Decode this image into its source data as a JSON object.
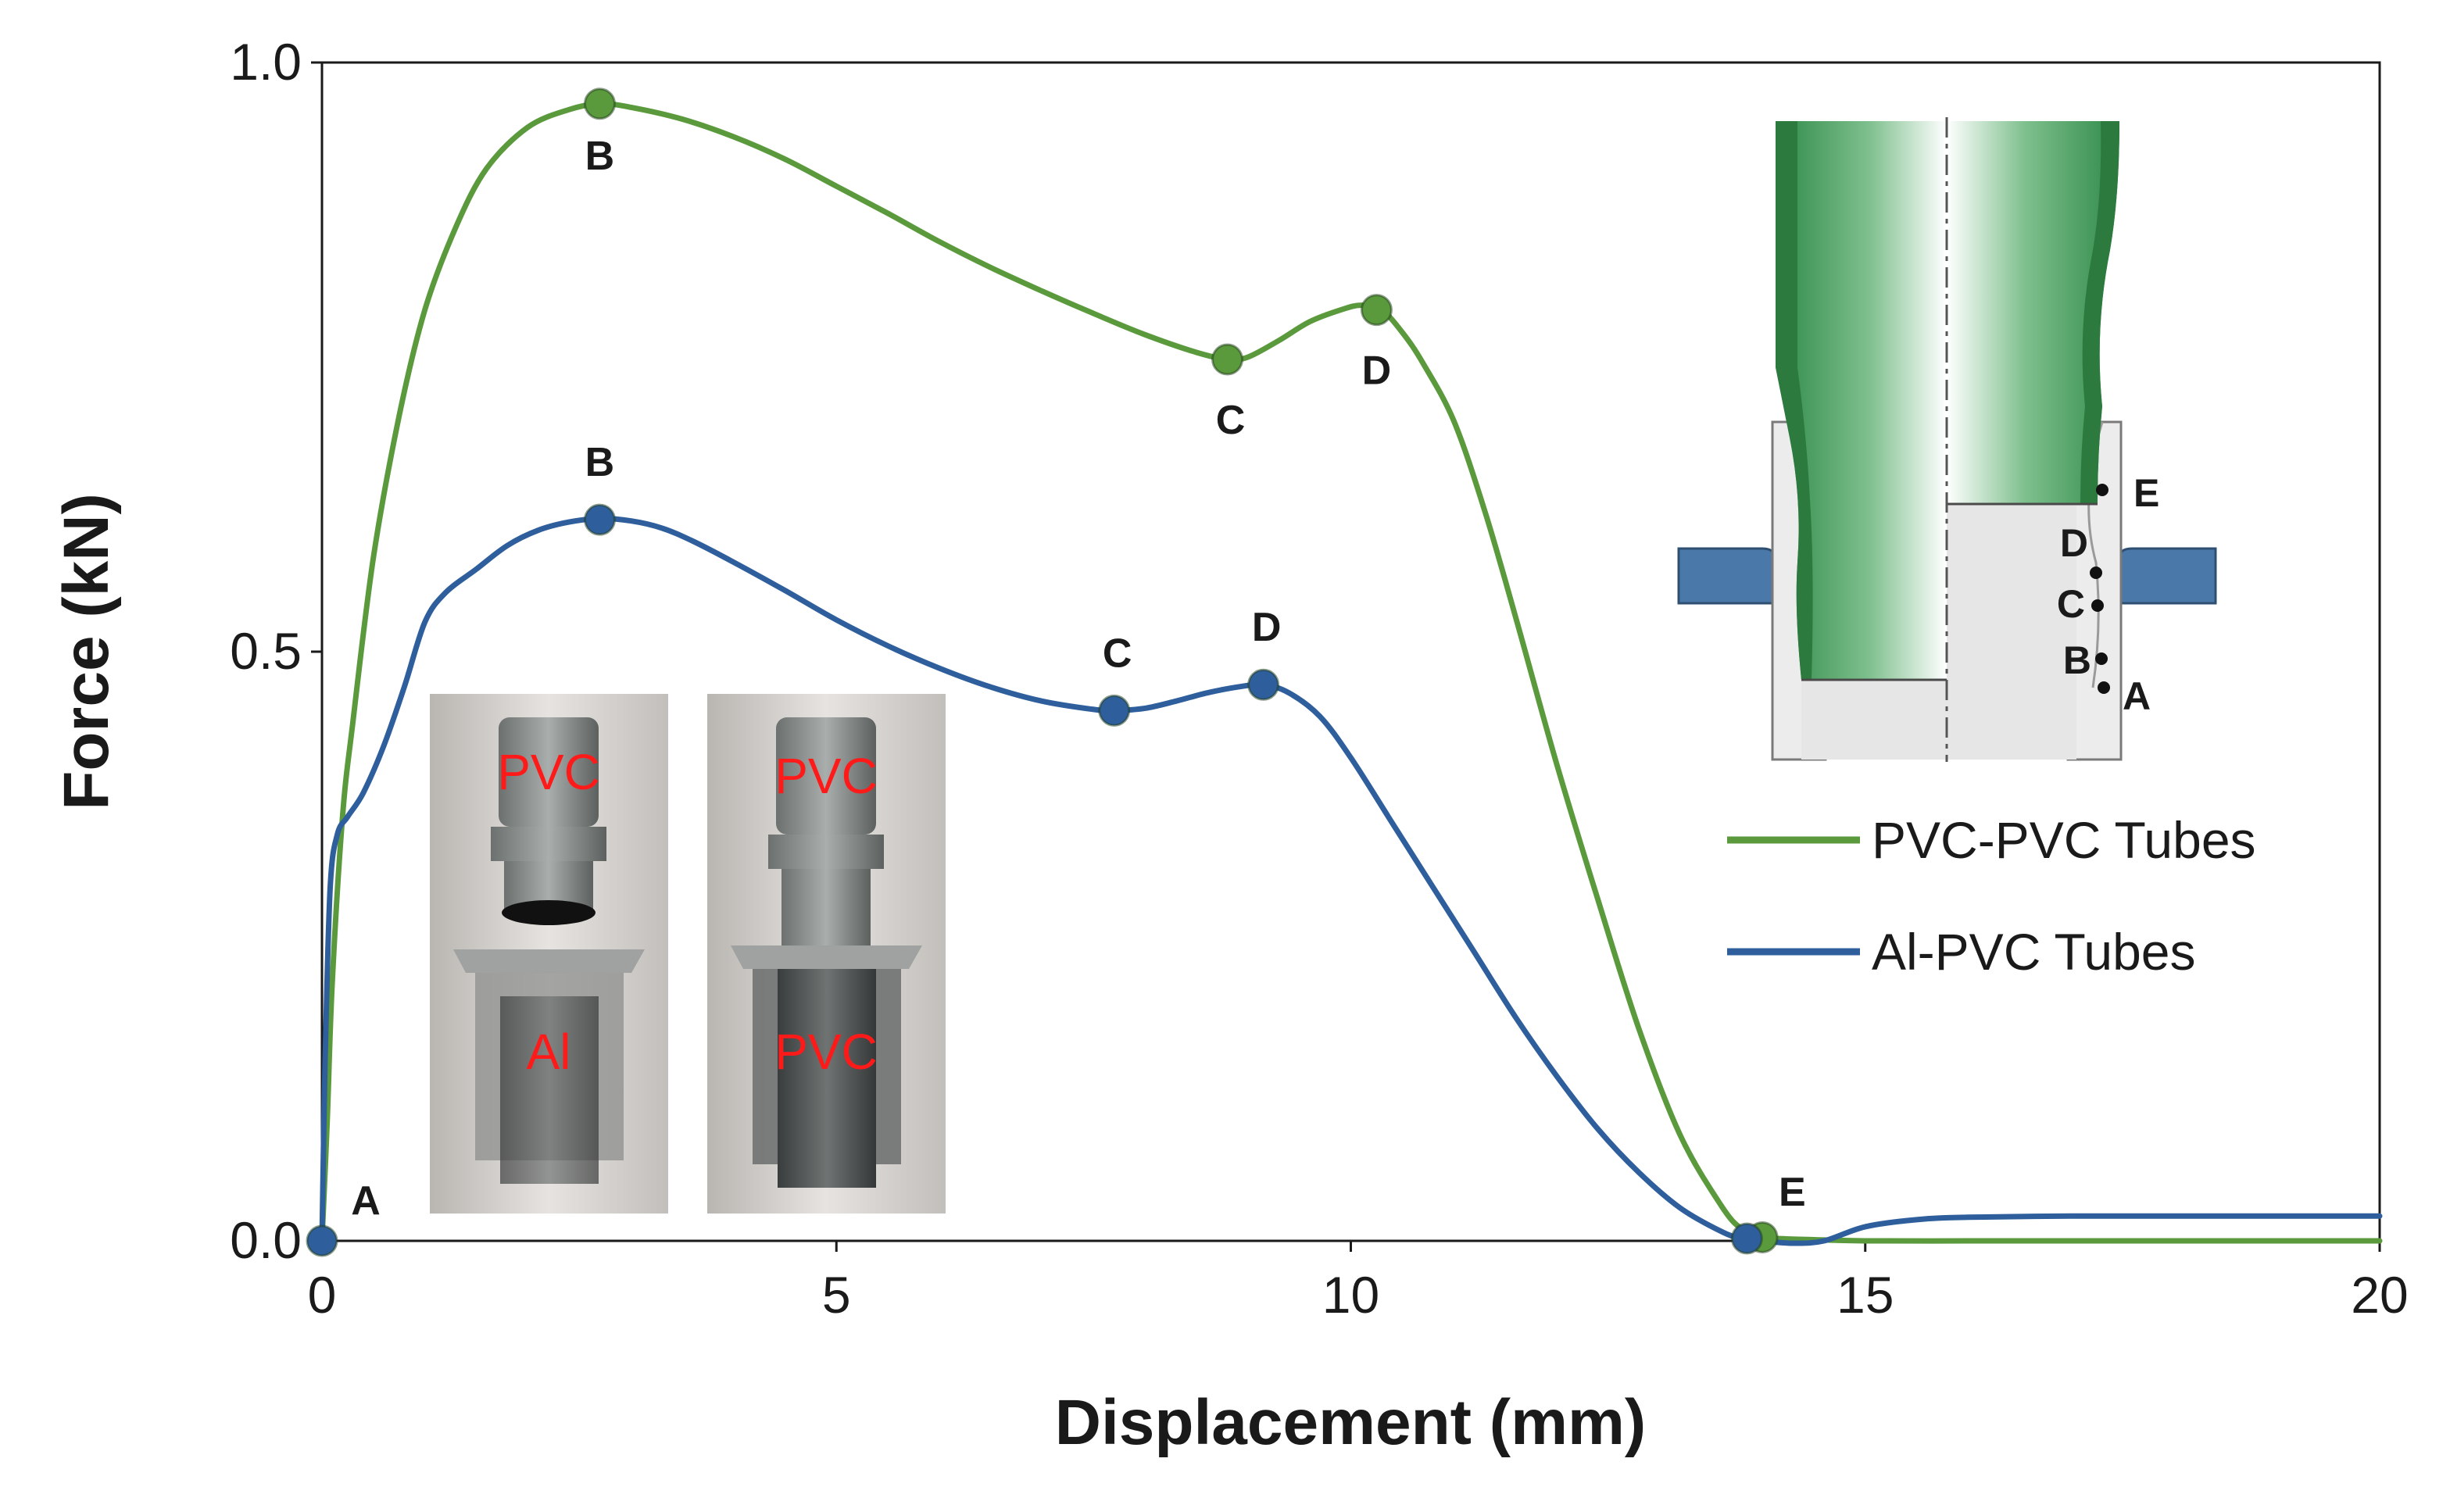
{
  "chart_data": {
    "type": "line",
    "xlabel": "Displacement (mm)",
    "ylabel": "Force (kN)",
    "xlim": [
      0,
      20
    ],
    "ylim": [
      0,
      1.0
    ],
    "xticks": [
      "0",
      "5",
      "10",
      "15",
      "20"
    ],
    "yticks": [
      "0.0",
      "0.5",
      "1.0"
    ],
    "grid": false,
    "legend_position": "right",
    "series": [
      {
        "name": "PVC-PVC Tubes",
        "color": "#5a9a3c",
        "x": [
          0,
          0.05,
          0.1,
          0.2,
          0.3,
          0.5,
          0.75,
          1.0,
          1.3,
          1.6,
          2.0,
          2.4,
          2.7,
          3.0,
          3.5,
          4.0,
          4.5,
          5.0,
          5.5,
          6.0,
          6.5,
          7.0,
          7.5,
          8.0,
          8.5,
          8.8,
          9.0,
          9.3,
          9.6,
          9.9,
          10.1,
          10.3,
          10.5,
          10.7,
          11.0,
          11.3,
          11.6,
          12.0,
          12.4,
          12.8,
          13.2,
          13.6,
          13.8,
          14.0,
          14.5,
          15,
          16,
          17,
          18,
          19,
          20
        ],
        "y": [
          0,
          0.1,
          0.22,
          0.36,
          0.44,
          0.58,
          0.7,
          0.79,
          0.86,
          0.91,
          0.945,
          0.96,
          0.965,
          0.962,
          0.952,
          0.937,
          0.918,
          0.895,
          0.872,
          0.848,
          0.826,
          0.806,
          0.787,
          0.769,
          0.754,
          0.748,
          0.75,
          0.764,
          0.78,
          0.79,
          0.794,
          0.79,
          0.771,
          0.745,
          0.696,
          0.62,
          0.53,
          0.405,
          0.29,
          0.18,
          0.09,
          0.03,
          0.01,
          0.003,
          0.001,
          0.0,
          0.0,
          0.0,
          0.0,
          0.0,
          0.0
        ]
      },
      {
        "name": "Al-PVC Tubes",
        "color": "#2e5f9c",
        "x": [
          0,
          0.03,
          0.08,
          0.15,
          0.25,
          0.4,
          0.6,
          0.8,
          1.0,
          1.2,
          1.5,
          1.8,
          2.1,
          2.4,
          2.7,
          3.0,
          3.3,
          3.6,
          4.0,
          4.5,
          5.0,
          5.5,
          6.0,
          6.5,
          7.0,
          7.5,
          7.7,
          8.0,
          8.3,
          8.6,
          8.9,
          9.15,
          9.4,
          9.7,
          10.0,
          10.4,
          10.8,
          11.2,
          11.6,
          12.0,
          12.4,
          12.8,
          13.2,
          13.6,
          13.8,
          14.0,
          14.3,
          14.6,
          15.0,
          15.5,
          16,
          17,
          18,
          19,
          20
        ],
        "y": [
          0,
          0.15,
          0.3,
          0.345,
          0.36,
          0.38,
          0.42,
          0.47,
          0.525,
          0.55,
          0.57,
          0.59,
          0.603,
          0.61,
          0.613,
          0.611,
          0.605,
          0.594,
          0.576,
          0.552,
          0.527,
          0.505,
          0.486,
          0.47,
          0.458,
          0.451,
          0.45,
          0.452,
          0.458,
          0.465,
          0.47,
          0.472,
          0.465,
          0.445,
          0.41,
          0.355,
          0.3,
          0.245,
          0.19,
          0.14,
          0.095,
          0.058,
          0.028,
          0.008,
          0.002,
          0.0,
          -0.002,
          0.0,
          0.012,
          0.018,
          0.02,
          0.021,
          0.021,
          0.021,
          0.021
        ]
      }
    ],
    "markers": [
      {
        "series": "PVC-PVC Tubes",
        "x": 2.7,
        "y": 0.965,
        "label": "B"
      },
      {
        "series": "PVC-PVC Tubes",
        "x": 8.8,
        "y": 0.748,
        "label": "C"
      },
      {
        "series": "PVC-PVC Tubes",
        "x": 10.25,
        "y": 0.79,
        "label": "D"
      },
      {
        "series": "PVC-PVC Tubes",
        "x": 14.0,
        "y": 0.003,
        "label": ""
      },
      {
        "series": "Al-PVC Tubes",
        "x": 0.0,
        "y": 0.0,
        "label": "A"
      },
      {
        "series": "Al-PVC Tubes",
        "x": 2.7,
        "y": 0.612,
        "label": "B"
      },
      {
        "series": "Al-PVC Tubes",
        "x": 7.7,
        "y": 0.45,
        "label": "C"
      },
      {
        "series": "Al-PVC Tubes",
        "x": 9.15,
        "y": 0.472,
        "label": "D"
      },
      {
        "series": "Al-PVC Tubes",
        "x": 13.85,
        "y": 0.002,
        "label": "E"
      }
    ]
  },
  "photos": {
    "left": {
      "top_label": "PVC",
      "bottom_label": "Al"
    },
    "right": {
      "top_label": "PVC",
      "bottom_label": "PVC"
    }
  },
  "diagram": {
    "labels": [
      "E",
      "D",
      "C",
      "B",
      "A"
    ]
  }
}
